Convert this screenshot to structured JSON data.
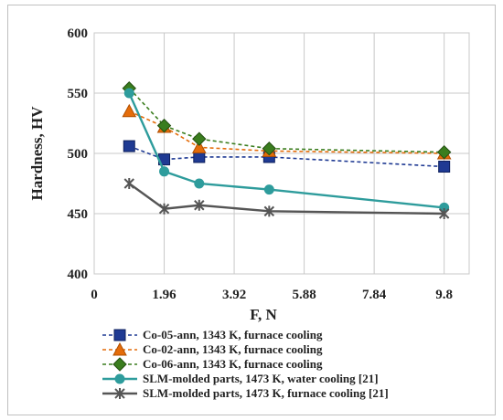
{
  "chart_data": {
    "type": "line",
    "xlabel": "F, N",
    "ylabel": "Hardness, HV",
    "xlim": [
      0,
      10.5
    ],
    "ylim": [
      400,
      600
    ],
    "x_ticks": [
      0,
      1.96,
      3.92,
      5.88,
      7.84,
      9.8
    ],
    "x_tick_labels": [
      "0",
      "1.96",
      "3.92",
      "5.88",
      "7.84",
      "9.8"
    ],
    "y_ticks": [
      400,
      450,
      500,
      550,
      600
    ],
    "y_tick_labels": [
      "400",
      "450",
      "500",
      "550",
      "600"
    ],
    "grid": true,
    "legend_position": "bottom",
    "series": [
      {
        "name": "Co-05-ann, 1343 K, furnace cooling",
        "color": "#1f3a93",
        "line_style": "dashed",
        "marker": "square",
        "x": [
          0.98,
          1.96,
          2.94,
          4.9,
          9.8
        ],
        "y": [
          506,
          495,
          497,
          497,
          489
        ]
      },
      {
        "name": "Co-02-ann, 1343 K, furnace cooling",
        "color": "#e46c0a",
        "line_style": "dashed",
        "marker": "triangle",
        "x": [
          0.98,
          1.96,
          2.94,
          4.9,
          9.8
        ],
        "y": [
          535,
          522,
          505,
          502,
          500
        ]
      },
      {
        "name": "Co-06-ann, 1343 K, furnace cooling",
        "color": "#3a7d1e",
        "line_style": "dashed",
        "marker": "diamond",
        "x": [
          0.98,
          1.96,
          2.94,
          4.9,
          9.8
        ],
        "y": [
          554,
          523,
          512,
          504,
          501
        ]
      },
      {
        "name": "SLM-molded parts, 1473 K, water cooling [21]",
        "color": "#2e9c9c",
        "line_style": "solid",
        "marker": "circle",
        "x": [
          0.98,
          1.96,
          2.94,
          4.9,
          9.8
        ],
        "y": [
          550,
          485,
          475,
          470,
          455
        ]
      },
      {
        "name": "SLM-molded parts, 1473 K, furnace cooling [21]",
        "color": "#555555",
        "line_style": "solid",
        "marker": "asterisk",
        "x": [
          0.98,
          1.96,
          2.94,
          4.9,
          9.8
        ],
        "y": [
          475,
          454,
          457,
          452,
          450
        ]
      }
    ]
  }
}
